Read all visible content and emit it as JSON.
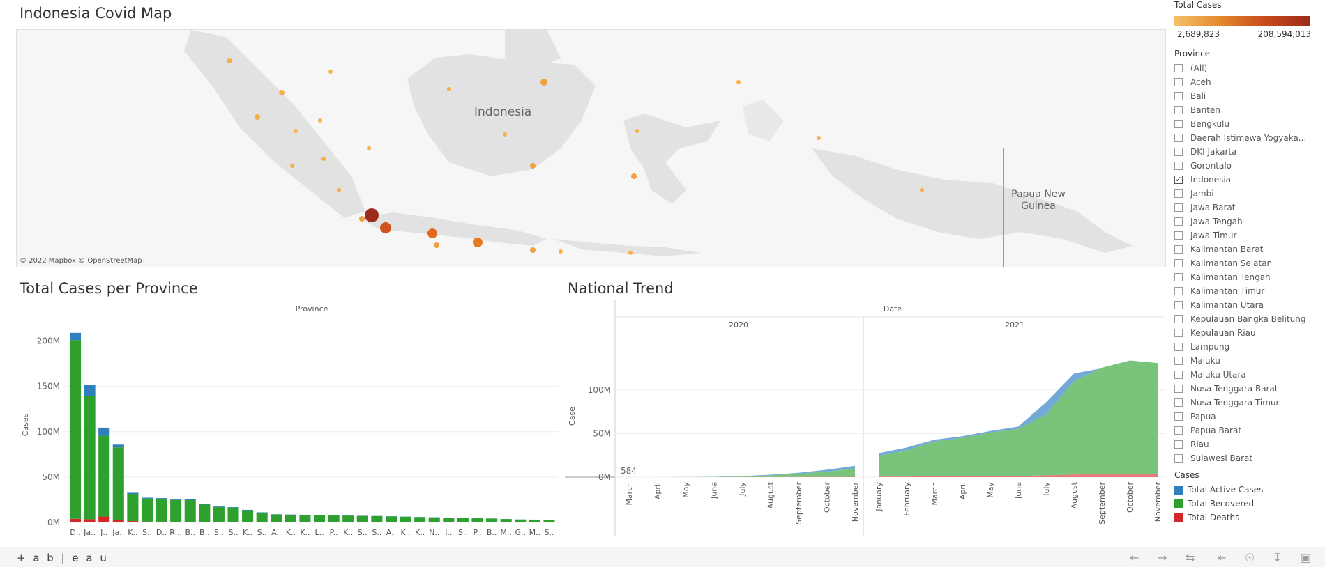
{
  "map": {
    "title": "Indonesia Covid Map",
    "labels": [
      "Indonesia",
      "Papua New Guinea"
    ],
    "credit": "© 2022 Mapbox  © OpenStreetMap"
  },
  "legend": {
    "title": "Total Cases",
    "min": "2,689,823",
    "max": "208,594,013",
    "colors": [
      "#f5c06a",
      "#e68a2e",
      "#c84b1c",
      "#9c2b1c"
    ]
  },
  "province_filter": {
    "title": "Province",
    "items": [
      {
        "label": "(All)",
        "checked": false
      },
      {
        "label": "Aceh",
        "checked": false
      },
      {
        "label": "Bali",
        "checked": false
      },
      {
        "label": "Banten",
        "checked": false
      },
      {
        "label": "Bengkulu",
        "checked": false
      },
      {
        "label": "Daerah Istimewa Yogyaka...",
        "checked": false
      },
      {
        "label": "DKI Jakarta",
        "checked": false
      },
      {
        "label": "Gorontalo",
        "checked": false
      },
      {
        "label": "Indonesia",
        "checked": true
      },
      {
        "label": "Jambi",
        "checked": false
      },
      {
        "label": "Jawa Barat",
        "checked": false
      },
      {
        "label": "Jawa Tengah",
        "checked": false
      },
      {
        "label": "Jawa Timur",
        "checked": false
      },
      {
        "label": "Kalimantan Barat",
        "checked": false
      },
      {
        "label": "Kalimantan Selatan",
        "checked": false
      },
      {
        "label": "Kalimantan Tengah",
        "checked": false
      },
      {
        "label": "Kalimantan Timur",
        "checked": false
      },
      {
        "label": "Kalimantan Utara",
        "checked": false
      },
      {
        "label": "Kepulauan Bangka Belitung",
        "checked": false
      },
      {
        "label": "Kepulauan Riau",
        "checked": false
      },
      {
        "label": "Lampung",
        "checked": false
      },
      {
        "label": "Maluku",
        "checked": false
      },
      {
        "label": "Maluku Utara",
        "checked": false
      },
      {
        "label": "Nusa Tenggara Barat",
        "checked": false
      },
      {
        "label": "Nusa Tenggara Timur",
        "checked": false
      },
      {
        "label": "Papua",
        "checked": false
      },
      {
        "label": "Papua Barat",
        "checked": false
      },
      {
        "label": "Riau",
        "checked": false
      },
      {
        "label": "Sulawesi Barat",
        "checked": false
      }
    ]
  },
  "cases_legend": {
    "title": "Cases",
    "items": [
      {
        "label": "Total Active Cases",
        "color": "#2f7ebd"
      },
      {
        "label": "Total Recovered",
        "color": "#2ea02e"
      },
      {
        "label": "Total Deaths",
        "color": "#d62728"
      }
    ]
  },
  "bar_title": "Total Cases per Province",
  "trend_title": "National Trend",
  "chart_data": [
    {
      "type": "bar",
      "title": "Total Cases per Province",
      "xlabel": "Province",
      "ylabel": "Cases",
      "categories": [
        "D..",
        "Ja..",
        "J..",
        "Ja..",
        "K..",
        "S..",
        "D..",
        "Ri..",
        "B..",
        "B..",
        "S..",
        "S..",
        "K..",
        "S..",
        "A..",
        "K..",
        "K..",
        "L..",
        "P..",
        "K..",
        "S..",
        "S..",
        "A..",
        "K..",
        "K..",
        "N..",
        "J..",
        "S..",
        "P..",
        "B..",
        "M..",
        "G..",
        "M..",
        "S.."
      ],
      "ylim": [
        0,
        215000000
      ],
      "yticks": [
        "0M",
        "50M",
        "100M",
        "150M",
        "200M"
      ],
      "ytick_values": [
        0,
        50000000,
        100000000,
        150000000,
        200000000
      ],
      "grid": true,
      "series": [
        {
          "name": "Total Deaths",
          "color": "#d62728",
          "values": [
            4000000,
            3500000,
            6500000,
            2800000,
            1500000,
            900000,
            800000,
            800000,
            600000,
            600000,
            500000,
            400000,
            400000,
            300000,
            250000,
            200000,
            200000,
            200000,
            150000,
            150000,
            150000,
            150000,
            130000,
            120000,
            120000,
            100000,
            100000,
            100000,
            90000,
            80000,
            70000,
            60000,
            60000,
            60000
          ]
        },
        {
          "name": "Total Recovered",
          "color": "#2ea02e",
          "values": [
            197000000,
            136000000,
            89000000,
            80000000,
            30000000,
            25500000,
            24500000,
            24000000,
            24000000,
            19000000,
            16500000,
            16000000,
            13000000,
            10500000,
            8500000,
            8200000,
            8000000,
            7800000,
            7500000,
            7400000,
            7000000,
            6800000,
            6500000,
            6200000,
            5700000,
            5500000,
            5000000,
            4800000,
            4500000,
            4200000,
            3700000,
            3200000,
            3000000,
            2800000
          ]
        },
        {
          "name": "Total Active Cases",
          "color": "#2f7ebd",
          "values": [
            8000000,
            12000000,
            9000000,
            3000000,
            1200000,
            900000,
            1500000,
            700000,
            900000,
            700000,
            600000,
            500000,
            500000,
            400000,
            300000,
            300000,
            300000,
            300000,
            300000,
            300000,
            250000,
            200000,
            200000,
            200000,
            200000,
            150000,
            150000,
            150000,
            120000,
            100000,
            80000,
            70000,
            60000,
            50000
          ]
        }
      ]
    },
    {
      "type": "area",
      "title": "National Trend",
      "xlabel": "Date",
      "ylabel": "Case",
      "ylim": [
        0,
        140000000
      ],
      "yticks": [
        "0M",
        "50M",
        "100M"
      ],
      "ytick_values": [
        0,
        50000000,
        100000000
      ],
      "annotation": "584",
      "panels": [
        {
          "year": "2020",
          "months": [
            "March",
            "April",
            "May",
            "June",
            "July",
            "August",
            "September",
            "October",
            "November"
          ],
          "deaths": [
            0,
            0,
            0,
            20000,
            60000,
            120000,
            200000,
            300000,
            400000
          ],
          "recovered": [
            0,
            10000,
            50000,
            200000,
            700000,
            1800000,
            3500000,
            6000000,
            9500000
          ],
          "total": [
            584,
            40000,
            150000,
            400000,
            1200000,
            2800000,
            5000000,
            8500000,
            13000000
          ]
        },
        {
          "year": "2021",
          "months": [
            "January",
            "February",
            "March",
            "April",
            "May",
            "June",
            "July",
            "August",
            "September",
            "October",
            "November"
          ],
          "deaths": [
            500000,
            700000,
            900000,
            1000000,
            1200000,
            1400000,
            2000000,
            3000000,
            3600000,
            3900000,
            4000000
          ],
          "recovered": [
            24000000,
            30000000,
            40000000,
            44000000,
            50000000,
            54000000,
            70000000,
            107000000,
            122000000,
            130000000,
            127000000
          ],
          "total": [
            27500000,
            34000000,
            43000000,
            47000000,
            53000000,
            58000000,
            86000000,
            119000000,
            125000000,
            131000000,
            128000000
          ]
        }
      ]
    }
  ],
  "footer": {
    "logo": "+ a b | e a u"
  }
}
